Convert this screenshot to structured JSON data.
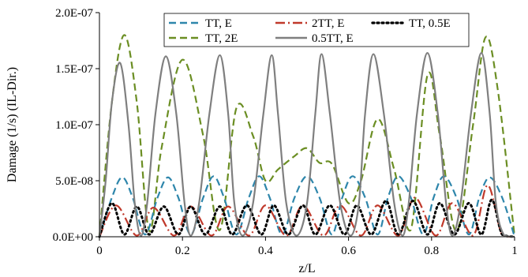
{
  "chart_data": {
    "type": "line",
    "title": "",
    "xlabel": "z/L",
    "ylabel": "Damage (1/s) (IL-Dir.)",
    "xlim": [
      0,
      1
    ],
    "ylim": [
      0,
      2e-07
    ],
    "x_ticks": [
      "0",
      "0.2",
      "0.4",
      "0.6",
      "0.8",
      "1"
    ],
    "y_ticks": [
      "0.0E+00",
      "5.0E-08",
      "1.0E-07",
      "1.5E-07",
      "2.0E-07"
    ],
    "grid": false,
    "legend_position": "top",
    "series": [
      {
        "name": "TT, E",
        "color": "#2e86ab",
        "style": "dashed",
        "x": [
          0,
          0.03,
          0.055,
          0.08,
          0.11,
          0.14,
          0.165,
          0.19,
          0.22,
          0.25,
          0.275,
          0.3,
          0.33,
          0.36,
          0.385,
          0.41,
          0.44,
          0.47,
          0.5,
          0.53,
          0.56,
          0.585,
          0.61,
          0.64,
          0.67,
          0.695,
          0.72,
          0.75,
          0.78,
          0.805,
          0.83,
          0.86,
          0.89,
          0.915,
          0.94,
          0.97,
          1
        ],
        "y": [
          0,
          3.5e-08,
          5.3e-08,
          3.5e-08,
          2e-09,
          3.5e-08,
          5.3e-08,
          3.5e-08,
          2e-09,
          3.5e-08,
          5.4e-08,
          3.5e-08,
          2e-09,
          3.5e-08,
          5.4e-08,
          3.5e-08,
          2e-09,
          3.5e-08,
          5.4e-08,
          3.5e-08,
          2e-09,
          3.5e-08,
          5.4e-08,
          3.5e-08,
          2e-09,
          3.5e-08,
          5.4e-08,
          3.5e-08,
          2e-09,
          3.5e-08,
          5.4e-08,
          3.5e-08,
          2e-09,
          3.5e-08,
          5.3e-08,
          3.5e-08,
          0
        ]
      },
      {
        "name": "2TT, E",
        "color": "#c0392b",
        "style": "dashdot",
        "x": [
          0,
          0.04,
          0.09,
          0.13,
          0.18,
          0.22,
          0.27,
          0.31,
          0.36,
          0.4,
          0.45,
          0.49,
          0.54,
          0.58,
          0.63,
          0.67,
          0.72,
          0.76,
          0.81,
          0.85,
          0.9,
          0.935,
          0.97,
          1
        ],
        "y": [
          0,
          2.8e-08,
          1e-09,
          2.6e-08,
          1e-09,
          2.7e-08,
          1e-09,
          2.7e-08,
          1e-09,
          2.8e-08,
          1e-09,
          2.8e-08,
          1e-09,
          2.8e-08,
          1e-09,
          2.8e-08,
          1e-09,
          3.5e-08,
          1e-09,
          3e-08,
          1e-09,
          4.6e-08,
          1e-09,
          0
        ]
      },
      {
        "name": "TT, 0.5E",
        "color": "#000000",
        "style": "dotted",
        "x": [
          0,
          0.03,
          0.06,
          0.09,
          0.12,
          0.155,
          0.19,
          0.22,
          0.255,
          0.29,
          0.32,
          0.355,
          0.39,
          0.42,
          0.455,
          0.49,
          0.52,
          0.555,
          0.59,
          0.62,
          0.655,
          0.69,
          0.72,
          0.755,
          0.79,
          0.82,
          0.855,
          0.89,
          0.92,
          0.945,
          0.97,
          1
        ],
        "y": [
          0,
          3e-08,
          2e-09,
          2.7e-08,
          2e-09,
          2.7e-08,
          2e-09,
          2.7e-08,
          2e-09,
          2.7e-08,
          2e-09,
          2.8e-08,
          2e-09,
          2.8e-08,
          2e-09,
          2.8e-08,
          2e-09,
          2.8e-08,
          2e-09,
          2.8e-08,
          2e-09,
          3.2e-08,
          2e-09,
          3.2e-08,
          2e-09,
          3e-08,
          2e-09,
          3e-08,
          2e-09,
          3.3e-08,
          2e-09,
          0
        ]
      },
      {
        "name": "TT, 2E",
        "color": "#6b8e23",
        "style": "dashed",
        "x": [
          0,
          0.03,
          0.06,
          0.09,
          0.12,
          0.15,
          0.2,
          0.25,
          0.29,
          0.33,
          0.37,
          0.4,
          0.43,
          0.47,
          0.5,
          0.53,
          0.56,
          0.6,
          0.63,
          0.67,
          0.71,
          0.75,
          0.79,
          0.82,
          0.86,
          0.9,
          0.93,
          0.96,
          1
        ],
        "y": [
          0,
          1.2e-07,
          1.8e-07,
          1.2e-07,
          5e-09,
          8e-08,
          1.58e-07,
          9e-08,
          6e-09,
          1.15e-07,
          9e-08,
          5e-08,
          6e-08,
          7.2e-08,
          7.9e-08,
          6.6e-08,
          6.5e-08,
          3e-08,
          5e-08,
          1.05e-07,
          6e-08,
          6e-09,
          1.44e-07,
          9e-08,
          5e-09,
          1e-07,
          1.78e-07,
          1.3e-07,
          0
        ]
      },
      {
        "name": "0.5TT, E",
        "color": "#7f7f7f",
        "style": "solid",
        "x": [
          0,
          0.015,
          0.03,
          0.05,
          0.07,
          0.085,
          0.1,
          0.115,
          0.135,
          0.16,
          0.185,
          0.205,
          0.22,
          0.24,
          0.265,
          0.29,
          0.31,
          0.325,
          0.345,
          0.37,
          0.395,
          0.415,
          0.43,
          0.45,
          0.475,
          0.5,
          0.52,
          0.535,
          0.555,
          0.58,
          0.605,
          0.625,
          0.64,
          0.66,
          0.685,
          0.71,
          0.73,
          0.745,
          0.765,
          0.79,
          0.815,
          0.835,
          0.85,
          0.87,
          0.895,
          0.92,
          0.94,
          0.955,
          0.975,
          1
        ],
        "y": [
          0,
          5e-08,
          1.2e-07,
          1.55e-07,
          1e-07,
          3e-08,
          1e-09,
          3e-08,
          1.1e-07,
          1.61e-07,
          1.1e-07,
          3e-08,
          1e-09,
          3e-08,
          1.1e-07,
          1.62e-07,
          1.1e-07,
          3e-08,
          1e-09,
          3e-08,
          1.1e-07,
          1.62e-07,
          1.1e-07,
          3e-08,
          1e-09,
          3e-08,
          1.1e-07,
          1.63e-07,
          1.1e-07,
          3e-08,
          1e-09,
          3e-08,
          1.1e-07,
          1.63e-07,
          1.1e-07,
          3e-08,
          1e-09,
          3e-08,
          1.1e-07,
          1.64e-07,
          1.1e-07,
          3e-08,
          1e-09,
          3e-08,
          1.1e-07,
          1.64e-07,
          1.1e-07,
          3e-08,
          1e-09,
          0
        ]
      }
    ]
  }
}
